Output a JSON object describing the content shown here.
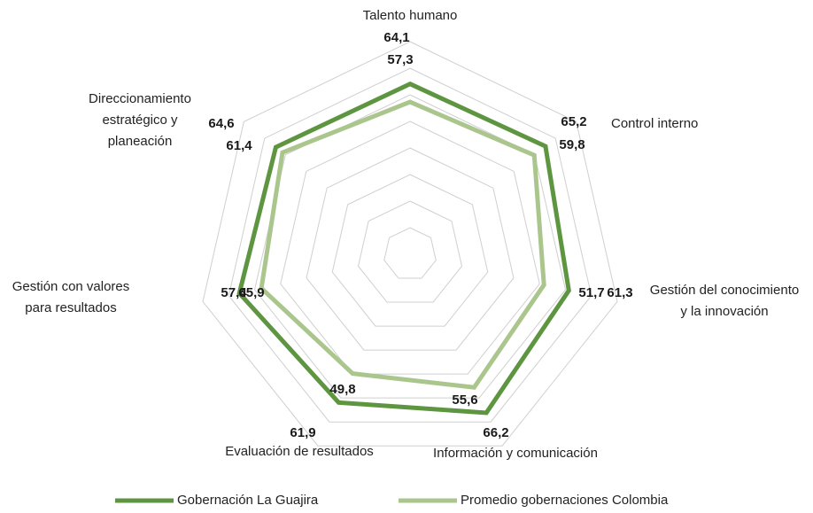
{
  "chart_data": {
    "type": "radar",
    "categories": [
      [
        "Talento humano"
      ],
      [
        "Control interno"
      ],
      [
        "Gestión del conocimiento",
        "y la innovación"
      ],
      [
        "Información y comunicación"
      ],
      [
        "Evaluación de resultados"
      ],
      [
        "Gestión con valores",
        "para resultados"
      ],
      [
        "Direccionamiento",
        "estratégico y",
        "planeación"
      ]
    ],
    "series": [
      {
        "name": "Gobernación La Guajira",
        "color": "#5e9540",
        "values": [
          64.1,
          65.2,
          61.3,
          66.2,
          61.9,
          65.9,
          64.6
        ],
        "value_labels": [
          "64,1",
          "65,2",
          "61,3",
          "66,2",
          "61,9",
          "65,9",
          "64,6"
        ]
      },
      {
        "name": "Promedio gobernaciones Colombia",
        "color": "#aac68d",
        "values": [
          57.3,
          59.8,
          51.7,
          55.6,
          49.8,
          57.4,
          61.4
        ],
        "value_labels": [
          "57,3",
          "59,8",
          "51,7",
          "55,6",
          "49,8",
          "57,4",
          "61,4"
        ]
      }
    ],
    "ylim": [
      0,
      80
    ],
    "yticks": [
      0,
      10,
      20,
      30,
      40,
      50,
      60,
      70,
      80
    ],
    "grid": true,
    "legend": "bottom"
  }
}
